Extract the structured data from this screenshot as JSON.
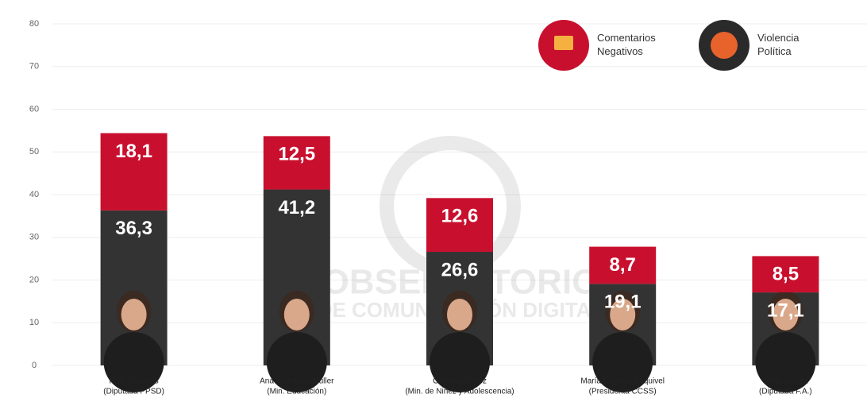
{
  "chart_data": {
    "type": "stacked_bar",
    "categories": [
      "Pilar Cisneros",
      "Ana Katharina Müller",
      "Gloriana López",
      "María Eugenia Esquivel",
      "Sofía Guillén"
    ],
    "category_details": [
      "(Diputada PPSD)",
      "(Min. Educación)",
      "(Min. de Niñez y Adolescencia)",
      "(Presidenta CCSS)",
      "(Diputada F.A.)"
    ],
    "series": [
      {
        "name": "Violencia Política",
        "color": "#333333",
        "values": [
          36.3,
          41.2,
          26.6,
          19.1,
          17.1
        ],
        "value_labels": [
          "36,3",
          "41,2",
          "26,6",
          "19,1",
          "17,1"
        ]
      },
      {
        "name": "Comentarios Negativos",
        "color": "#c8102e",
        "values": [
          18.1,
          12.5,
          12.6,
          8.7,
          8.5
        ],
        "value_labels": [
          "18,1",
          "12,5",
          "12,6",
          "8,7",
          "8,5"
        ]
      }
    ],
    "ylim": [
      0,
      80
    ],
    "yticks": [
      0,
      10,
      20,
      30,
      40,
      50,
      60,
      70,
      80
    ],
    "grid": true,
    "watermark": [
      "OBSERVATORIO",
      "DE COMUNICACIÓN DIGITAL"
    ]
  }
}
